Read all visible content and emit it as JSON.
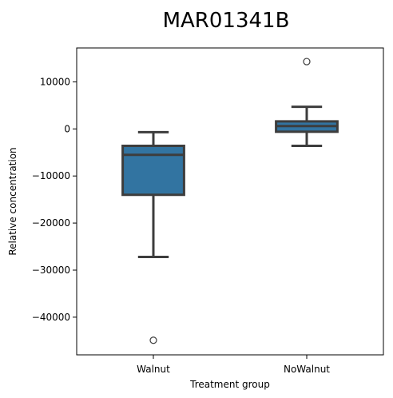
{
  "chart_data": {
    "type": "box",
    "title": "MAR01341B",
    "xlabel": "Treatment group",
    "ylabel": "Relative concentration",
    "ylim": [
      -48000,
      17200
    ],
    "yticks": [
      10000,
      0,
      -10000,
      -20000,
      -30000,
      -40000
    ],
    "ytick_labels": [
      "10000",
      "0",
      "−10000",
      "−20000",
      "−30000",
      "−40000"
    ],
    "categories": [
      "Walnut",
      "NoWalnut"
    ],
    "boxes": [
      {
        "group": "Walnut",
        "whisker_low": -27200,
        "q1": -14000,
        "median": -5500,
        "q3": -3600,
        "whisker_high": -700,
        "outliers": [
          -44900
        ]
      },
      {
        "group": "NoWalnut",
        "whisker_low": -3600,
        "q1": -600,
        "median": 600,
        "q3": 1600,
        "whisker_high": 4700,
        "outliers": [
          14300
        ]
      }
    ],
    "box_color": "#3274a1",
    "line_color": "#3d3d3d",
    "grid": false
  }
}
